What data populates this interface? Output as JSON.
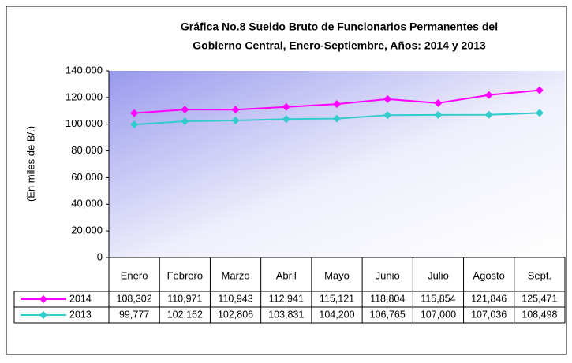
{
  "chart_data": {
    "type": "line",
    "title_lines": [
      "Gráfica No.8 Sueldo Bruto de Funcionarios Permanentes del",
      "Gobierno Central, Enero-Septiembre, Años: 2014 y 2013"
    ],
    "y_label": "(En miles de B/.)",
    "categories": [
      "Enero",
      "Febrero",
      "Marzo",
      "Abril",
      "Mayo",
      "Junio",
      "Julio",
      "Agosto",
      "Sept."
    ],
    "series": [
      {
        "name": "2014",
        "color": "#ff00ff",
        "values": [
          108302,
          110971,
          110943,
          112941,
          115121,
          118804,
          115854,
          121846,
          125471
        ],
        "value_labels": [
          "108,302",
          "110,971",
          "110,943",
          "112,941",
          "115,121",
          "118,804",
          "115,854",
          "121,846",
          "125,471"
        ]
      },
      {
        "name": "2013",
        "color": "#33cccc",
        "values": [
          99777,
          102162,
          102806,
          103831,
          104200,
          106765,
          107000,
          107036,
          108498
        ],
        "value_labels": [
          "99,777",
          "102,162",
          "102,806",
          "103,831",
          "104,200",
          "106,765",
          "107,000",
          "107,036",
          "108,498"
        ]
      }
    ],
    "ylim": [
      0,
      140000
    ],
    "yticks": [
      0,
      {
        "value": 20000,
        "label": "20,000"
      },
      {
        "value": 40000,
        "label": "40,000"
      },
      {
        "value": 60000,
        "label": "60,000"
      },
      {
        "value": 80000,
        "label": "80,000"
      },
      {
        "value": 100000,
        "label": "100,000"
      },
      {
        "value": 120000,
        "label": "120,000"
      },
      {
        "value": 140000,
        "label": "140,000"
      }
    ],
    "grid": false
  }
}
